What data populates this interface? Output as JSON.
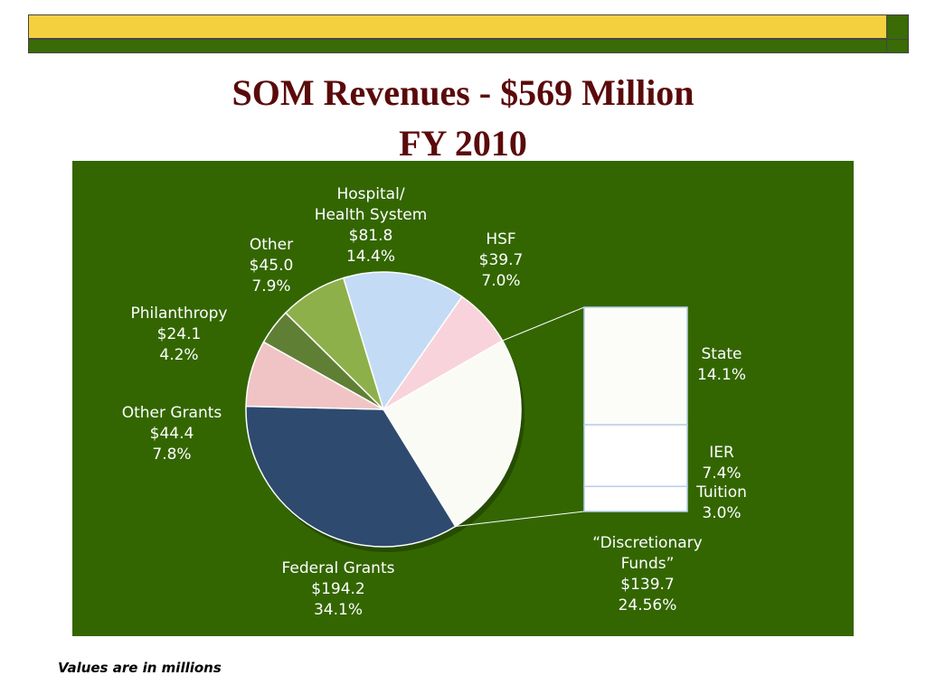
{
  "page": {
    "title_line1": "SOM Revenues - $569 Million",
    "title_line2": "FY 2010",
    "footnote": "Values are in millions"
  },
  "colors": {
    "panel": "#336600",
    "title": "#5a0a0a",
    "accent_yellow": "#f4d03f",
    "accent_green": "#3a6b06"
  },
  "chart_data": {
    "type": "pie",
    "title": "SOM Revenues - $569 Million FY 2010",
    "slices": [
      {
        "name": "“Discretionary Funds”",
        "value": 139.7,
        "percent": "24.56%",
        "color": "#fbfbf6",
        "label_lines": [
          "“Discretionary",
          "Funds”",
          "$139.7",
          "24.56%"
        ]
      },
      {
        "name": "Federal Grants",
        "value": 194.2,
        "percent": "34.1%",
        "color": "#2e4a6e",
        "label_lines": [
          "Federal Grants",
          "$194.2",
          "34.1%"
        ]
      },
      {
        "name": "Other Grants",
        "value": 44.4,
        "percent": "7.8%",
        "color": "#f0c4c4",
        "label_lines": [
          "Other Grants",
          "$44.4",
          "7.8%"
        ]
      },
      {
        "name": "Philanthropy",
        "value": 24.1,
        "percent": "4.2%",
        "color": "#5f7f35",
        "label_lines": [
          "Philanthropy",
          "$24.1",
          "4.2%"
        ]
      },
      {
        "name": "Other",
        "value": 45.0,
        "percent": "7.9%",
        "color": "#8db04a",
        "label_lines": [
          "Other",
          "$45.0",
          "7.9%"
        ]
      },
      {
        "name": "Hospital/ Health System",
        "value": 81.8,
        "percent": "14.4%",
        "color": "#c3dbf5",
        "label_lines": [
          "Hospital/",
          "Health System",
          "$81.8",
          "14.4%"
        ]
      },
      {
        "name": "HSF",
        "value": 39.7,
        "percent": "7.0%",
        "color": "#f9d3dc",
        "label_lines": [
          "HSF",
          "$39.7",
          "7.0%"
        ]
      }
    ],
    "breakdown": {
      "of": "“Discretionary Funds”",
      "segments": [
        {
          "name": "State",
          "percent": "14.1%",
          "value": 14.1,
          "color": "#fcfcf8"
        },
        {
          "name": "IER",
          "percent": "7.4%",
          "value": 7.4,
          "color": "#ffffff"
        },
        {
          "name": "Tuition",
          "percent": "3.0%",
          "value": 3.0,
          "color": "#ffffff"
        }
      ]
    }
  }
}
